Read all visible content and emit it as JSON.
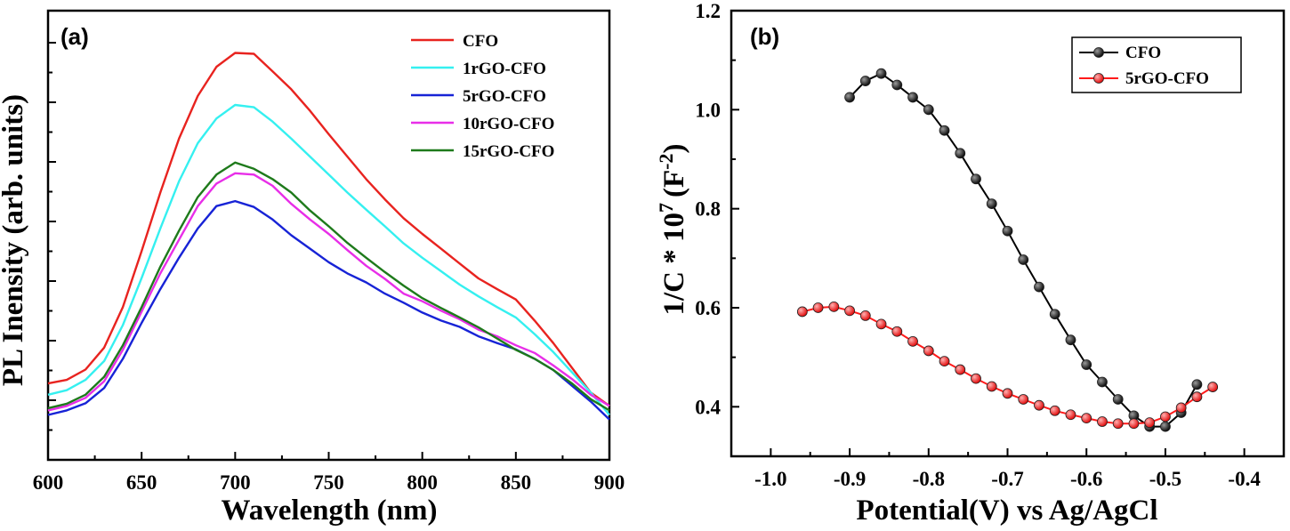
{
  "chart_data": [
    {
      "type": "line",
      "panel_label": "(a)",
      "xlabel": "Wavelength (nm)",
      "ylabel": "PL Inensity (arb. units)",
      "xlim": [
        600,
        900
      ],
      "ylim": [
        0,
        100
      ],
      "xticks": [
        600,
        650,
        700,
        750,
        800,
        850,
        900
      ],
      "xtick_labels": [
        "600",
        "650",
        "700",
        "750",
        "800",
        "850",
        "900"
      ],
      "yticks_shown": false,
      "legend_position": "top-right",
      "series": [
        {
          "name": "CFO",
          "color": "#e8231f",
          "x": [
            600,
            610,
            620,
            630,
            640,
            650,
            660,
            670,
            680,
            690,
            700,
            710,
            720,
            730,
            740,
            750,
            760,
            770,
            780,
            790,
            800,
            810,
            820,
            830,
            840,
            850,
            860,
            870,
            880,
            890,
            900
          ],
          "y": [
            17.0,
            17.8,
            20.1,
            25.0,
            34.0,
            46.5,
            59.5,
            71.5,
            81.0,
            87.5,
            90.6,
            90.4,
            86.5,
            82.5,
            77.7,
            72.5,
            67.5,
            62.5,
            58.0,
            53.8,
            50.3,
            47.0,
            43.7,
            40.4,
            38.0,
            35.7,
            31.0,
            26.0,
            20.5,
            15.0,
            12.0
          ]
        },
        {
          "name": "1rGO-CFO",
          "color": "#35f0f0",
          "x": [
            600,
            610,
            620,
            630,
            640,
            650,
            660,
            670,
            680,
            690,
            700,
            710,
            720,
            730,
            740,
            750,
            760,
            770,
            780,
            790,
            800,
            810,
            820,
            830,
            840,
            850,
            860,
            870,
            880,
            890,
            900
          ],
          "y": [
            14.5,
            15.5,
            17.8,
            22.0,
            30.0,
            40.5,
            51.5,
            62.0,
            70.5,
            76.0,
            79.0,
            78.5,
            75.3,
            71.5,
            67.5,
            63.5,
            59.5,
            55.7,
            52.0,
            48.2,
            45.0,
            42.0,
            39.0,
            36.4,
            34.0,
            31.7,
            28.0,
            24.0,
            19.5,
            15.0,
            10.0
          ]
        },
        {
          "name": "5rGO-CFO",
          "color": "#1723d6",
          "x": [
            600,
            610,
            620,
            630,
            640,
            650,
            660,
            670,
            680,
            690,
            700,
            710,
            720,
            730,
            740,
            750,
            760,
            770,
            780,
            790,
            800,
            810,
            820,
            830,
            840,
            850,
            860,
            870,
            880,
            890,
            900
          ],
          "y": [
            10.0,
            11.0,
            12.6,
            16.0,
            22.5,
            30.5,
            38.0,
            45.0,
            51.5,
            56.5,
            57.6,
            56.3,
            53.5,
            50.0,
            47.0,
            44.0,
            41.5,
            39.5,
            37.0,
            35.0,
            32.8,
            31.0,
            29.6,
            27.5,
            26.0,
            24.6,
            22.5,
            20.0,
            16.5,
            13.0,
            9.0
          ]
        },
        {
          "name": "10rGO-CFO",
          "color": "#e82ee8",
          "x": [
            600,
            610,
            620,
            630,
            640,
            650,
            660,
            670,
            680,
            690,
            700,
            710,
            720,
            730,
            740,
            750,
            760,
            770,
            780,
            790,
            800,
            810,
            820,
            830,
            840,
            850,
            860,
            870,
            880,
            890,
            900
          ],
          "y": [
            11.0,
            12.0,
            13.8,
            17.5,
            24.5,
            33.0,
            41.5,
            49.0,
            56.5,
            61.5,
            63.8,
            63.5,
            61.0,
            57.0,
            53.5,
            50.3,
            46.7,
            43.2,
            40.3,
            37.0,
            35.3,
            33.2,
            31.3,
            29.0,
            27.5,
            25.5,
            23.8,
            21.0,
            18.0,
            14.5,
            12.0
          ]
        },
        {
          "name": "15rGO-CFO",
          "color": "#1e7a1b",
          "x": [
            600,
            610,
            620,
            630,
            640,
            650,
            660,
            670,
            680,
            690,
            700,
            710,
            720,
            730,
            740,
            750,
            760,
            770,
            780,
            790,
            800,
            810,
            820,
            830,
            840,
            850,
            860,
            870,
            880,
            890,
            900
          ],
          "y": [
            11.5,
            12.5,
            14.5,
            18.5,
            25.5,
            34.0,
            43.0,
            51.0,
            58.5,
            63.5,
            66.2,
            64.8,
            62.5,
            59.5,
            55.5,
            52.0,
            48.3,
            45.0,
            41.8,
            38.8,
            36.0,
            33.8,
            31.7,
            29.5,
            27.0,
            24.5,
            22.5,
            20.0,
            17.0,
            13.5,
            11.0
          ]
        }
      ]
    },
    {
      "type": "line",
      "panel_label": "(b)",
      "xlabel": "Potential(V) vs Ag/AgCl",
      "ylabel_main": "1/C * 10",
      "ylabel_exp": "7",
      "ylabel_unit": "(F",
      "ylabel_unit_exp": "-2",
      "ylabel_close": ")",
      "xlim": [
        -1.05,
        -0.35
      ],
      "ylim": [
        0.3,
        1.2
      ],
      "xticks": [
        -1.0,
        -0.9,
        -0.8,
        -0.7,
        -0.6,
        -0.5,
        -0.4
      ],
      "xtick_labels": [
        "-1.0",
        "-0.9",
        "-0.8",
        "-0.7",
        "-0.6",
        "-0.5",
        "-0.4"
      ],
      "yticks": [
        0.4,
        0.6,
        0.8,
        1.0,
        1.2
      ],
      "ytick_labels": [
        "0.4",
        "0.6",
        "0.8",
        "1.0",
        "1.2"
      ],
      "legend_position": "top-right",
      "series": [
        {
          "name": "CFO",
          "color": "#000000",
          "x": [
            -0.9,
            -0.88,
            -0.86,
            -0.84,
            -0.82,
            -0.8,
            -0.78,
            -0.76,
            -0.74,
            -0.72,
            -0.7,
            -0.68,
            -0.66,
            -0.64,
            -0.62,
            -0.6,
            -0.58,
            -0.56,
            -0.54,
            -0.52,
            -0.5,
            -0.48,
            -0.46
          ],
          "y": [
            1.025,
            1.058,
            1.073,
            1.05,
            1.025,
            1.0,
            0.958,
            0.912,
            0.86,
            0.81,
            0.755,
            0.697,
            0.642,
            0.587,
            0.535,
            0.485,
            0.45,
            0.415,
            0.382,
            0.36,
            0.36,
            0.388,
            0.445
          ]
        },
        {
          "name": "5rGO-CFO",
          "color": "#ff1a1a",
          "x": [
            -0.96,
            -0.94,
            -0.92,
            -0.9,
            -0.88,
            -0.86,
            -0.84,
            -0.82,
            -0.8,
            -0.78,
            -0.76,
            -0.74,
            -0.72,
            -0.7,
            -0.68,
            -0.66,
            -0.64,
            -0.62,
            -0.6,
            -0.58,
            -0.56,
            -0.54,
            -0.52,
            -0.5,
            -0.48,
            -0.46,
            -0.44
          ],
          "y": [
            0.592,
            0.6,
            0.602,
            0.594,
            0.584,
            0.567,
            0.552,
            0.532,
            0.513,
            0.492,
            0.475,
            0.457,
            0.441,
            0.427,
            0.415,
            0.403,
            0.392,
            0.384,
            0.377,
            0.37,
            0.366,
            0.366,
            0.368,
            0.38,
            0.398,
            0.42,
            0.44
          ]
        }
      ]
    }
  ]
}
